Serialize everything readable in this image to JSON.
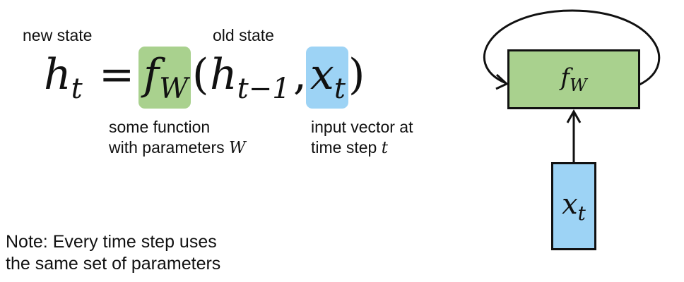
{
  "labels": {
    "new_state": "new state",
    "old_state": "old state",
    "function_line1": "some function",
    "function_line2_prefix": "with parameters",
    "function_line2_var": "W",
    "input_line1": "input vector at",
    "input_line2_prefix": "time step",
    "input_line2_var": "t",
    "note_line1": "Note: Every time step uses",
    "note_line2": "the same set of parameters"
  },
  "equation": {
    "lhs": "h",
    "lhs_sub": "t",
    "equals": "=",
    "fn": "f",
    "fn_sub": "W",
    "open_paren": "(",
    "h_prev": "h",
    "h_prev_sub": "t−1",
    "comma": ",",
    "x": "x",
    "x_sub": "t",
    "close_paren": ")"
  },
  "diagram": {
    "cell_fn": "f",
    "cell_fn_sub": "W",
    "input": "x",
    "input_sub": "t"
  },
  "colors": {
    "function_highlight": "#a9d18e",
    "input_highlight": "#9dd3f5",
    "stroke": "#111111"
  }
}
